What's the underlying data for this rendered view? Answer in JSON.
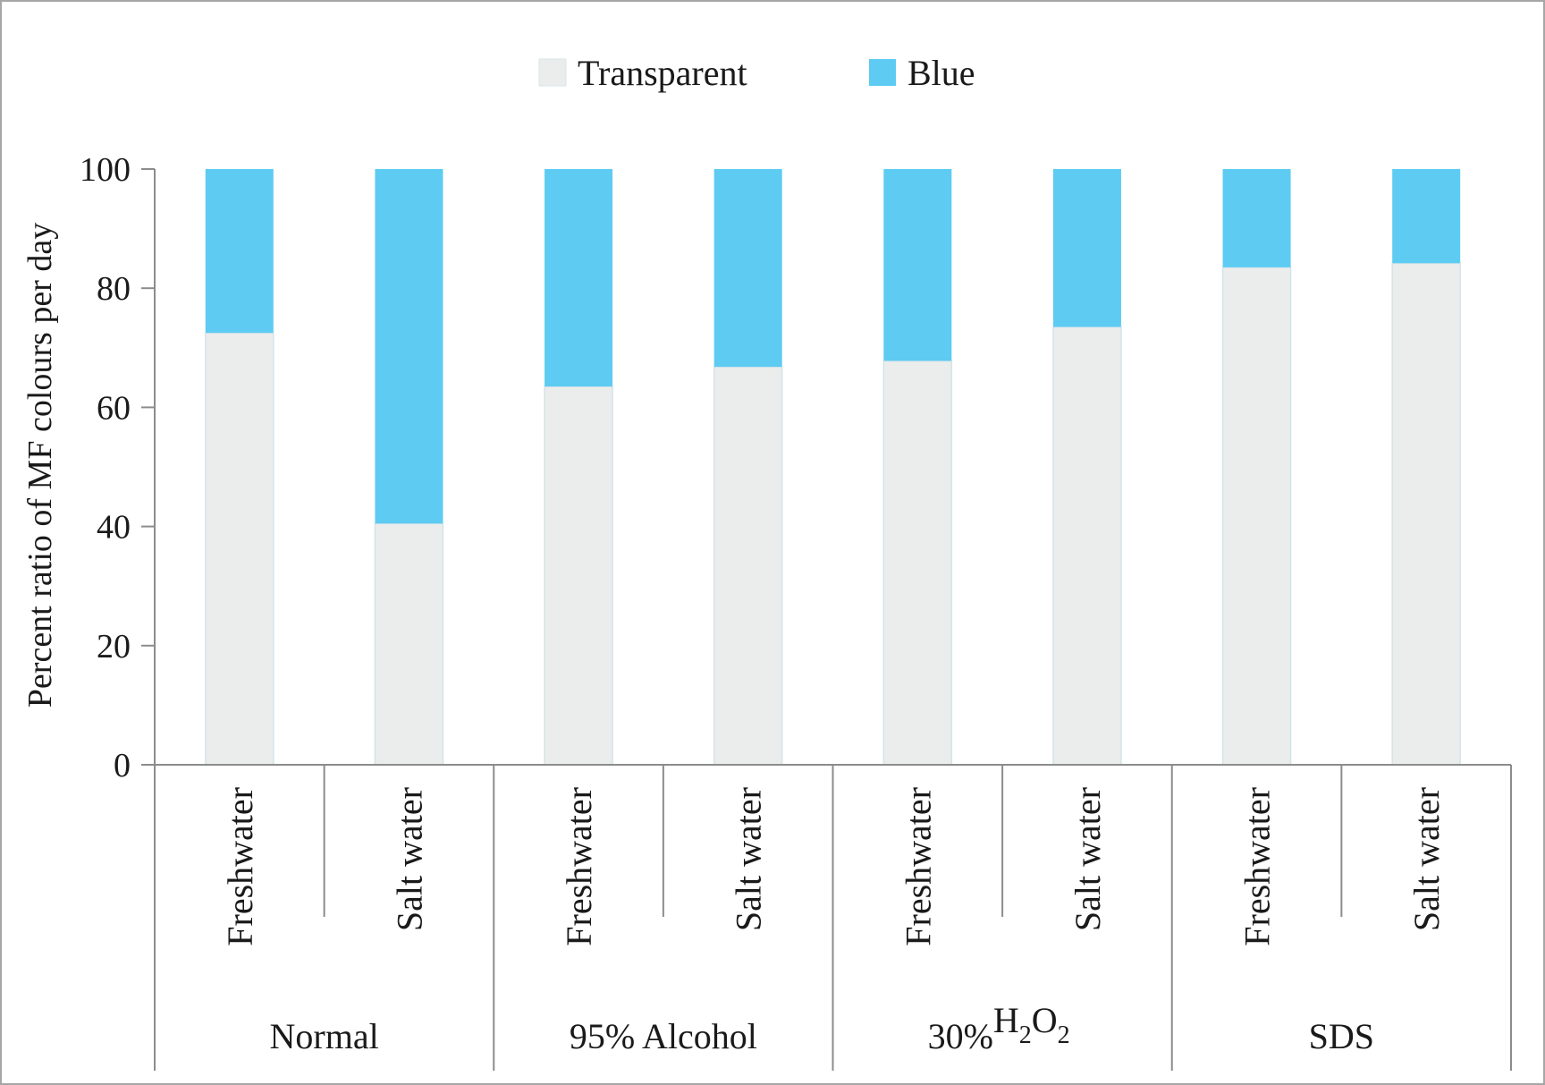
{
  "chart_data": {
    "type": "bar",
    "stacked": true,
    "title": "",
    "xlabel": "",
    "ylabel": "Percent ratio of MF colours per day",
    "ylim": [
      0,
      100
    ],
    "yticks": [
      "0",
      "20",
      "40",
      "60",
      "80",
      "100"
    ],
    "grid": false,
    "legend_position": "top-center",
    "groups": [
      {
        "label_prefix": "",
        "label": "Normal",
        "subscript_formula": null
      },
      {
        "label_prefix": "",
        "label": "95% Alcohol",
        "subscript_formula": null
      },
      {
        "label_prefix": "30%",
        "label": "",
        "subscript_formula": {
          "h": "H",
          "sub1": "2",
          "o": "O",
          "sub2": "2"
        }
      },
      {
        "label_prefix": "",
        "label": "SDS",
        "subscript_formula": null
      }
    ],
    "categories": [
      "Freshwater",
      "Salt water",
      "Freshwater",
      "Salt water",
      "Freshwater",
      "Salt water",
      "Freshwater",
      "Salt water"
    ],
    "series": [
      {
        "name": "Transparent",
        "color": "#ebecec",
        "values": [
          72.5,
          40.5,
          63.5,
          66.8,
          67.8,
          73.5,
          83.5,
          84.2
        ]
      },
      {
        "name": "Blue",
        "color": "#5ecbf2",
        "values": [
          27.5,
          59.5,
          36.5,
          33.2,
          32.2,
          26.5,
          16.5,
          15.8
        ]
      }
    ]
  }
}
